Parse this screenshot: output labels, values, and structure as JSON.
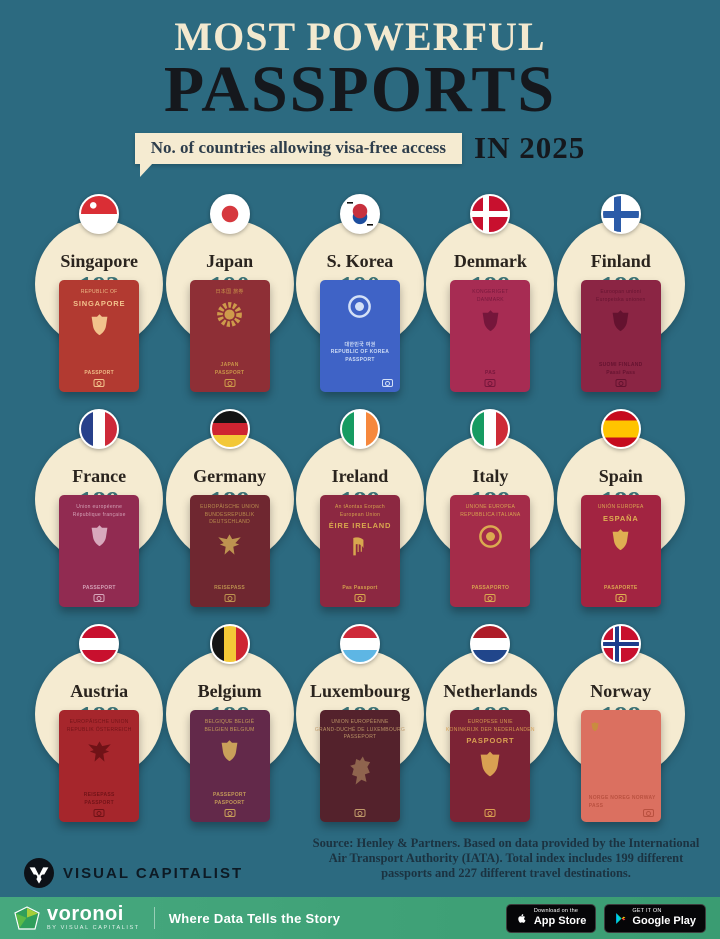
{
  "header": {
    "title_line1": "MOST POWERFUL",
    "title_line2": "PASSPORTS",
    "subtitle": "No. of countries allowing visa-free access",
    "year_label": "IN 2025"
  },
  "colors": {
    "background": "#2C6A80",
    "bubble_cream": "#F5EBD1",
    "title_cream": "#F3E9CF",
    "title_dark": "#15181D",
    "value_teal": "#3B7377",
    "bottom_bar_green": "#41A27A"
  },
  "countries": [
    {
      "name": "Singapore",
      "visa_free": "193",
      "flag": "sg",
      "cover": "#B23A31",
      "ink": "#F2C28C",
      "emblem": "crest",
      "chip": "center",
      "passport": {
        "top": [
          "REPUBLIC OF"
        ],
        "title": "SINGAPORE",
        "bottom": [
          "PASSPORT"
        ]
      }
    },
    {
      "name": "Japan",
      "visa_free": "190",
      "flag": "jp",
      "cover": "#8E2F36",
      "ink": "#CE9B4B",
      "emblem": "flower",
      "chip": "center",
      "passport": {
        "top": [
          "日本国  旅券"
        ],
        "title": "",
        "bottom": [
          "JAPAN",
          "PASSPORT"
        ]
      }
    },
    {
      "name": "S. Korea",
      "visa_free": "190",
      "flag": "kr",
      "cover": "#3F63C6",
      "ink": "#D3E0F7",
      "emblem": "round",
      "chip": "right",
      "passport": {
        "top": [],
        "title": "",
        "bottom": [
          "대한민국 여권",
          "REPUBLIC OF KOREA",
          "PASSPORT"
        ]
      }
    },
    {
      "name": "Denmark",
      "visa_free": "189",
      "flag": "dk",
      "cover": "#A72C53",
      "ink": "#75163B",
      "emblem": "crest",
      "chip": "center",
      "passport": {
        "top": [
          "KONGERIGET",
          "DANMARK"
        ],
        "title": "",
        "bottom": [
          "PAS"
        ]
      }
    },
    {
      "name": "Finland",
      "visa_free": "189",
      "flag": "fi",
      "cover": "#8B2544",
      "ink": "#64122F",
      "emblem": "crest",
      "chip": "center",
      "passport": {
        "top": [
          "Euroopan unioni",
          "Europeiska unionen"
        ],
        "title": "",
        "bottom": [
          "SUOMI  FINLAND",
          "Passi  Pass"
        ]
      }
    },
    {
      "name": "France",
      "visa_free": "189",
      "flag": "fr",
      "cover": "#912B51",
      "ink": "#D8A8BC",
      "emblem": "crest",
      "chip": "center",
      "passport": {
        "top": [
          "Union européenne",
          "République française"
        ],
        "title": "",
        "bottom": [
          "PASSEPORT"
        ]
      }
    },
    {
      "name": "Germany",
      "visa_free": "189",
      "flag": "de",
      "cover": "#6F2730",
      "ink": "#BE9350",
      "emblem": "eagle",
      "chip": "center",
      "passport": {
        "top": [
          "EUROPÄISCHE UNION",
          "BUNDESREPUBLIK",
          "DEUTSCHLAND"
        ],
        "title": "",
        "bottom": [
          "REISEPASS"
        ]
      }
    },
    {
      "name": "Ireland",
      "visa_free": "189",
      "flag": "ie",
      "cover": "#8C2841",
      "ink": "#D8A74E",
      "emblem": "harp",
      "chip": "center",
      "passport": {
        "top": [
          "An tAontas Eorpach",
          "European Union"
        ],
        "title": "ÉIRE  IRELAND",
        "bottom": [
          "Pas  Passport"
        ]
      }
    },
    {
      "name": "Italy",
      "visa_free": "189",
      "flag": "it",
      "cover": "#A42C49",
      "ink": "#DBAA50",
      "emblem": "round",
      "chip": "center",
      "passport": {
        "top": [
          "UNIONE EUROPEA",
          "REPUBBLICA ITALIANA"
        ],
        "title": "",
        "bottom": [
          "PASSAPORTO"
        ]
      }
    },
    {
      "name": "Spain",
      "visa_free": "189",
      "flag": "es",
      "cover": "#A22441",
      "ink": "#DFAF52",
      "emblem": "crest",
      "chip": "center",
      "passport": {
        "top": [
          "UNIÓN EUROPEA"
        ],
        "title": "ESPAÑA",
        "bottom": [
          "PASAPORTE"
        ]
      }
    },
    {
      "name": "Austria",
      "visa_free": "188",
      "flag": "at",
      "cover": "#A6262C",
      "ink": "#701217",
      "emblem": "eagle",
      "chip": "center",
      "passport": {
        "top": [
          "EUROPÄISCHE UNION",
          "REPUBLIK ÖSTERREICH"
        ],
        "title": "",
        "bottom": [
          "REISEPASS",
          "PASSPORT"
        ]
      }
    },
    {
      "name": "Belgium",
      "visa_free": "188",
      "flag": "be",
      "cover": "#63294A",
      "ink": "#C9A05A",
      "emblem": "crest",
      "chip": "center",
      "passport": {
        "top": [
          "BELGIQUE  BELGIË",
          "BELGIEN  BELGIUM"
        ],
        "title": "",
        "bottom": [
          "PASSEPORT",
          "PASPOORT"
        ]
      }
    },
    {
      "name": "Luxembourg",
      "visa_free": "188",
      "flag": "lu",
      "cover": "#54222C",
      "ink": "#C09A6A",
      "emblem": "lion",
      "chip": "center",
      "passport": {
        "top": [
          "UNION EUROPÉENNE",
          "GRAND-DUCHÉ DE LUXEMBOURG",
          "PASSEPORT"
        ],
        "title": "",
        "bottom": []
      }
    },
    {
      "name": "Netherlands",
      "visa_free": "188",
      "flag": "nl",
      "cover": "#7C2335",
      "ink": "#D9A052",
      "emblem": "crest",
      "chip": "center",
      "passport": {
        "top": [
          "EUROPESE UNIE",
          "KONINKRIJK DER NEDERLANDEN"
        ],
        "title": "PASPOORT",
        "bottom": []
      }
    },
    {
      "name": "Norway",
      "visa_free": "188",
      "flag": "no",
      "cover": "#DB7060",
      "ink": "#B8503F",
      "emblem": "crest",
      "emblem_color": "#C98C3F",
      "chip": "right",
      "passport": {
        "top": [],
        "title": "",
        "bottom": [
          "NORGE  NOREG  NORWAY",
          "PASS"
        ]
      }
    }
  ],
  "footer": {
    "source_text": "Source: Henley & Partners. Based on data provided by the International Air Transport Authority (IATA). Total index includes 199 different passports and 227 different travel destinations.",
    "brand_name": "VISUAL CAPITALIST"
  },
  "bottom_bar": {
    "logo_text": "voronoi",
    "logo_subtext": "BY VISUAL CAPITALIST",
    "tagline": "Where Data Tells the Story",
    "app_store": {
      "line1": "Download on the",
      "line2": "App Store"
    },
    "google_play": {
      "line1": "GET IT ON",
      "line2": "Google Play"
    }
  },
  "chart_data": {
    "type": "table",
    "title": "Most Powerful Passports in 2025",
    "subtitle": "No. of countries allowing visa-free access",
    "categories": [
      "Singapore",
      "Japan",
      "S. Korea",
      "Denmark",
      "Finland",
      "France",
      "Germany",
      "Ireland",
      "Italy",
      "Spain",
      "Austria",
      "Belgium",
      "Luxembourg",
      "Netherlands",
      "Norway"
    ],
    "values": [
      193,
      190,
      190,
      189,
      189,
      189,
      189,
      189,
      189,
      189,
      188,
      188,
      188,
      188,
      188
    ],
    "layout": "pictorial grid, 5 columns x 3 rows, ranked left-to-right top-to-bottom"
  }
}
